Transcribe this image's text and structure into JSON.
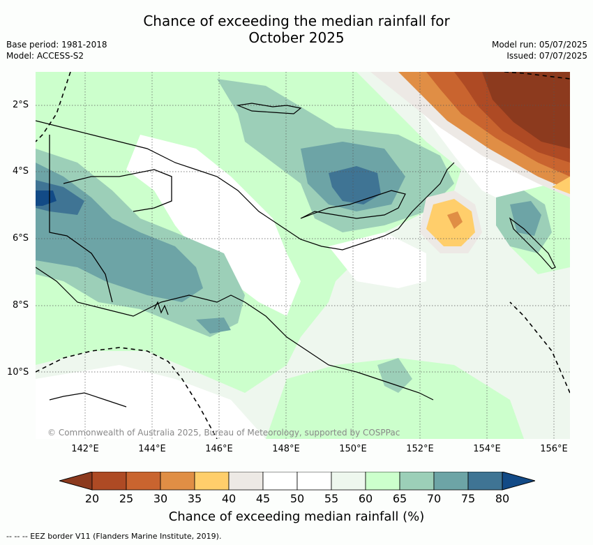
{
  "title_line1": "Chance of exceeding the median rainfall for",
  "title_line2": "October 2025",
  "meta_left": [
    "Base period: 1981-2018",
    "Model: ACCESS-S2"
  ],
  "meta_right": [
    "Model run: 05/07/2025",
    "Issued: 07/07/2025"
  ],
  "copyright": "© Commonwealth of Australia 2025, Bureau of Meteorology, supported by COSPPac",
  "lat_labels": [
    "2°S",
    "4°S",
    "6°S",
    "8°S",
    "10°S"
  ],
  "lon_labels": [
    "142°E",
    "144°E",
    "146°E",
    "148°E",
    "150°E",
    "152°E",
    "154°E",
    "156°E"
  ],
  "colorbar": {
    "ticks": [
      "20",
      "25",
      "30",
      "35",
      "40",
      "45",
      "50",
      "55",
      "60",
      "65",
      "70",
      "75",
      "80"
    ],
    "colors": [
      "#8c3a1e",
      "#ae4a24",
      "#c9642f",
      "#e08e45",
      "#ffce6b",
      "#ede9e5",
      "#ffffff",
      "#ffffff",
      "#eef7ee",
      "#ccffcc",
      "#9ccfb8",
      "#6da4a6",
      "#3f7494",
      "#124a86"
    ],
    "title": "Chance of exceeding median rainfall (%)"
  },
  "footnote": "-- -- -- EEZ border V11 (Flanders Marine Institute, 2019)."
}
